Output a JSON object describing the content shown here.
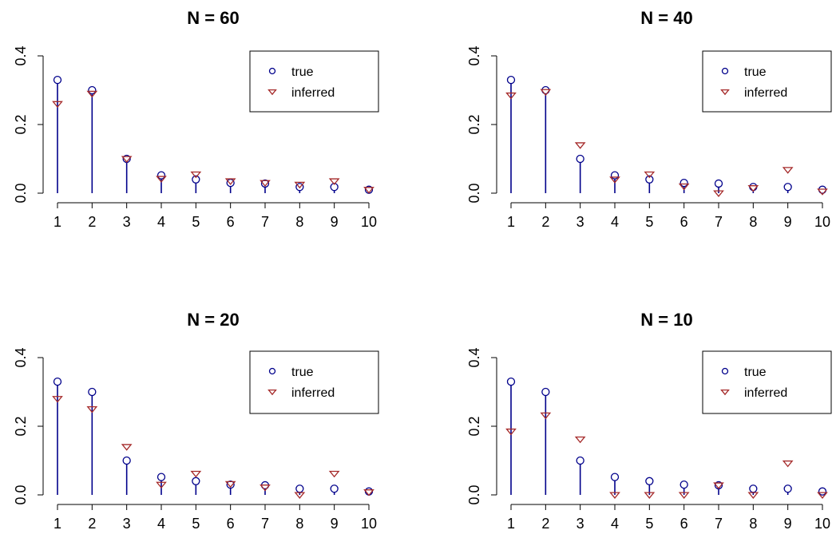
{
  "colors": {
    "true_series": "#00008B",
    "inferred_series": "#A52A2A",
    "stem": "#00008B",
    "axis": "#000000"
  },
  "chart_data": [
    {
      "type": "scatter",
      "title": "N = 60",
      "xlabel": "",
      "ylabel": "",
      "x": [
        1,
        2,
        3,
        4,
        5,
        6,
        7,
        8,
        9,
        10
      ],
      "xticks": [
        "1",
        "2",
        "3",
        "4",
        "5",
        "6",
        "7",
        "8",
        "9",
        "10"
      ],
      "yticks": [
        "0.0",
        "0.2",
        "0.4"
      ],
      "ylim": [
        0,
        0.45
      ],
      "legend_position": "top-right",
      "series": [
        {
          "name": "true",
          "marker": "circle",
          "stems": true,
          "values": [
            0.33,
            0.3,
            0.1,
            0.052,
            0.04,
            0.03,
            0.028,
            0.018,
            0.018,
            0.01
          ]
        },
        {
          "name": "inferred",
          "marker": "triangle-down",
          "stems": false,
          "values": [
            0.26,
            0.29,
            0.1,
            0.042,
            0.055,
            0.035,
            0.03,
            0.025,
            0.035,
            0.01
          ]
        }
      ]
    },
    {
      "type": "scatter",
      "title": "N = 40",
      "xlabel": "",
      "ylabel": "",
      "x": [
        1,
        2,
        3,
        4,
        5,
        6,
        7,
        8,
        9,
        10
      ],
      "xticks": [
        "1",
        "2",
        "3",
        "4",
        "5",
        "6",
        "7",
        "8",
        "9",
        "10"
      ],
      "yticks": [
        "0.0",
        "0.2",
        "0.4"
      ],
      "ylim": [
        0,
        0.45
      ],
      "legend_position": "top-right",
      "series": [
        {
          "name": "true",
          "marker": "circle",
          "stems": true,
          "values": [
            0.33,
            0.3,
            0.1,
            0.052,
            0.04,
            0.03,
            0.028,
            0.018,
            0.018,
            0.01
          ]
        },
        {
          "name": "inferred",
          "marker": "triangle-down",
          "stems": false,
          "values": [
            0.285,
            0.295,
            0.14,
            0.04,
            0.055,
            0.02,
            0.0,
            0.015,
            0.068,
            0.005
          ]
        }
      ]
    },
    {
      "type": "scatter",
      "title": "N = 20",
      "xlabel": "",
      "ylabel": "",
      "x": [
        1,
        2,
        3,
        4,
        5,
        6,
        7,
        8,
        9,
        10
      ],
      "xticks": [
        "1",
        "2",
        "3",
        "4",
        "5",
        "6",
        "7",
        "8",
        "9",
        "10"
      ],
      "yticks": [
        "0.0",
        "0.2",
        "0.4"
      ],
      "ylim": [
        0,
        0.45
      ],
      "legend_position": "top-right",
      "series": [
        {
          "name": "true",
          "marker": "circle",
          "stems": true,
          "values": [
            0.33,
            0.3,
            0.1,
            0.052,
            0.04,
            0.03,
            0.028,
            0.018,
            0.018,
            0.01
          ]
        },
        {
          "name": "inferred",
          "marker": "triangle-down",
          "stems": false,
          "values": [
            0.28,
            0.25,
            0.14,
            0.03,
            0.062,
            0.032,
            0.022,
            0.0,
            0.062,
            0.008
          ]
        }
      ]
    },
    {
      "type": "scatter",
      "title": "N = 10",
      "xlabel": "",
      "ylabel": "",
      "x": [
        1,
        2,
        3,
        4,
        5,
        6,
        7,
        8,
        9,
        10
      ],
      "xticks": [
        "1",
        "2",
        "3",
        "4",
        "5",
        "6",
        "7",
        "8",
        "9",
        "10"
      ],
      "yticks": [
        "0.0",
        "0.2",
        "0.4"
      ],
      "ylim": [
        0,
        0.45
      ],
      "legend_position": "top-right",
      "series": [
        {
          "name": "true",
          "marker": "circle",
          "stems": true,
          "values": [
            0.33,
            0.3,
            0.1,
            0.052,
            0.04,
            0.03,
            0.028,
            0.018,
            0.018,
            0.01
          ]
        },
        {
          "name": "inferred",
          "marker": "triangle-down",
          "stems": false,
          "values": [
            0.185,
            0.232,
            0.162,
            0.0,
            0.0,
            0.0,
            0.028,
            0.0,
            0.092,
            0.0
          ]
        }
      ]
    }
  ]
}
